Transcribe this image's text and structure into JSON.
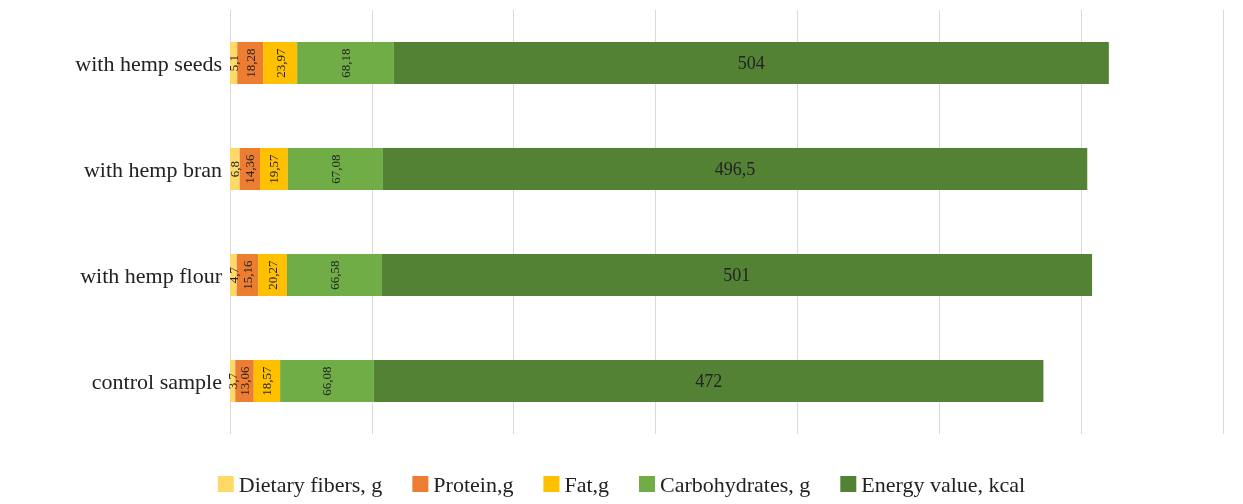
{
  "chart_data": {
    "type": "bar",
    "orientation": "horizontal",
    "stacked": true,
    "grid": "x",
    "legend": "bottom",
    "categories": [
      "with hemp seeds",
      "with hemp bran",
      "with hemp flour",
      "control sample"
    ],
    "series": [
      {
        "name": "Dietary fibers, g",
        "color": "#ffd966",
        "values": [
          5.1,
          6.8,
          4.7,
          3.7
        ],
        "value_labels": [
          "5,1",
          "6,8",
          "4,7",
          "3,7"
        ]
      },
      {
        "name": "Protein,g",
        "color": "#ed7d31",
        "values": [
          18.28,
          14.36,
          15.16,
          13.06
        ],
        "value_labels": [
          "18,28",
          "14,36",
          "15,16",
          "13,06"
        ]
      },
      {
        "name": "Fat,g",
        "color": "#ffc000",
        "values": [
          23.97,
          19.57,
          20.27,
          18.57
        ],
        "value_labels": [
          "23,97",
          "19,57",
          "20,27",
          "18,57"
        ]
      },
      {
        "name": "Carbohydrates, g",
        "color": "#70ad47",
        "values": [
          68.18,
          67.08,
          66.58,
          66.08
        ],
        "value_labels": [
          "68,18",
          "67,08",
          "66,58",
          "66,08"
        ]
      },
      {
        "name": "Energy value, kcal",
        "color": "#548235",
        "values": [
          504,
          496.5,
          501,
          472
        ],
        "value_labels": [
          "504",
          "496,5",
          "501",
          "472"
        ]
      }
    ]
  }
}
